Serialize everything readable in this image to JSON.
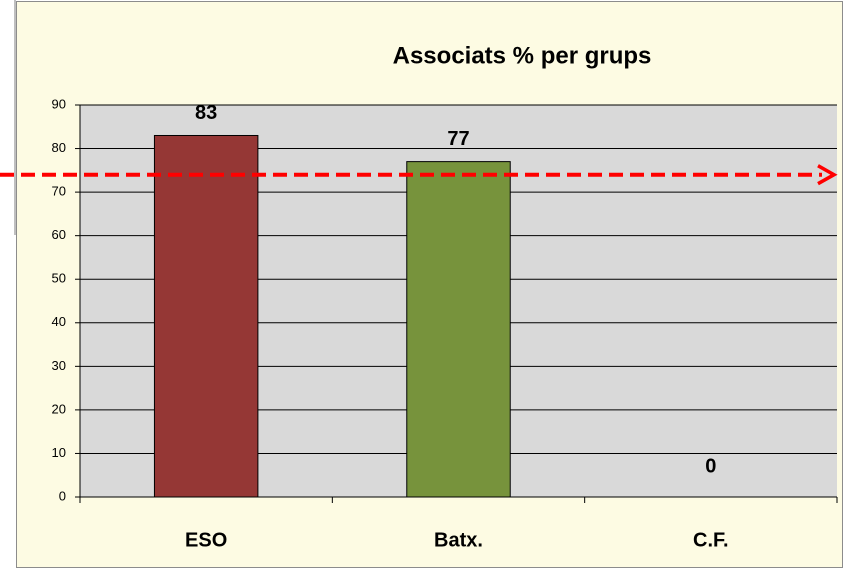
{
  "chart_data": {
    "type": "bar",
    "title": "Associats  % per grups",
    "categories": [
      "ESO",
      "Batx.",
      "C.F."
    ],
    "values": [
      83,
      77,
      0
    ],
    "colors": [
      "#953735",
      "#77933c",
      null
    ],
    "ylim": [
      0,
      90
    ],
    "yticks": [
      0,
      10,
      20,
      30,
      40,
      50,
      60,
      70,
      80,
      90
    ],
    "grid": true,
    "reference_line": {
      "value": 74,
      "color": "#ff0000"
    }
  }
}
